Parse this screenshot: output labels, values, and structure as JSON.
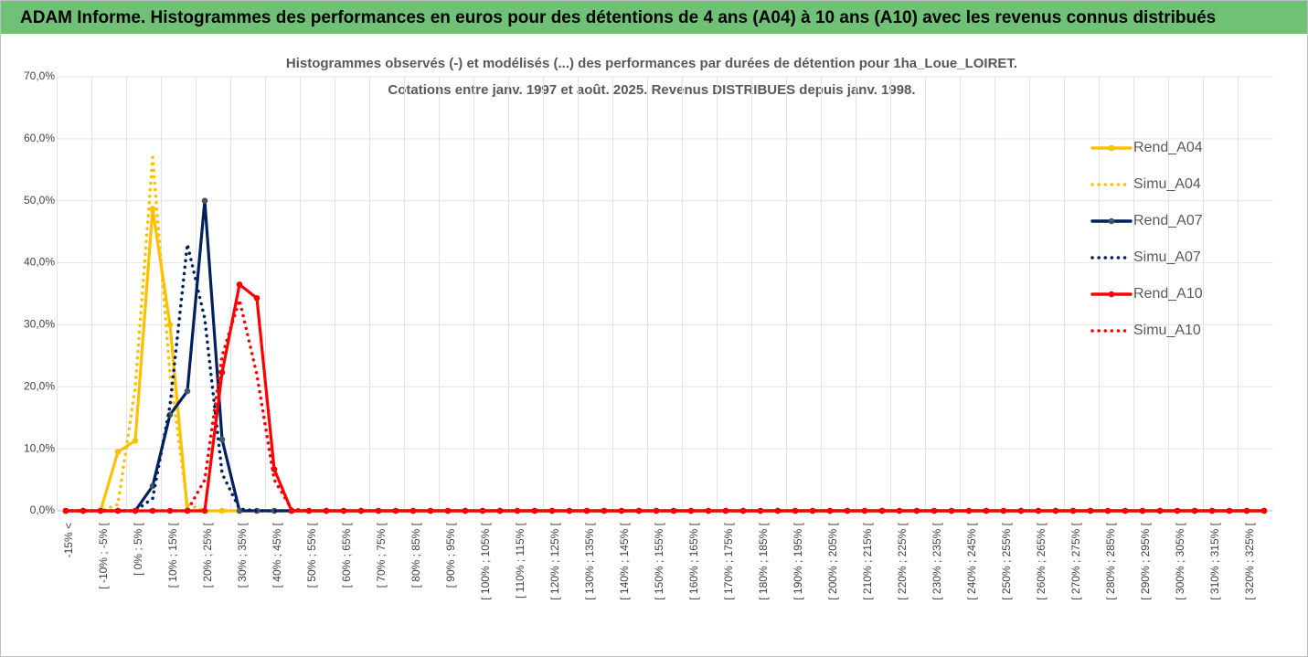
{
  "banner": "ADAM Informe. Histogrammes des performances en euros pour des détentions de 4 ans (A04) à 10 ans (A10) avec les revenus connus distribués",
  "chart_data": {
    "type": "line",
    "title": [
      "Histogrammes observés (-) et modélisés (...) des performances par durées de détention pour 1ha_Loue_LOIRET.",
      "Cotations entre janv. 1997 et août. 2025. Revenus DISTRIBUES depuis janv. 1998."
    ],
    "categories": [
      "-15% <",
      null,
      "[ -10% ; -5% [",
      null,
      "[ 0% ; 5% [",
      null,
      "[ 10% ; 15% [",
      null,
      "[ 20% ; 25% [",
      null,
      "[ 30% ; 35% [",
      null,
      "[ 40% ; 45% [",
      null,
      "[ 50% ; 55% [",
      null,
      "[ 60% ; 65% [",
      null,
      "[ 70% ; 75% [",
      null,
      "[ 80% ; 85% [",
      null,
      "[ 90% ; 95% [",
      null,
      "[ 100% ; 105% [",
      null,
      "[ 110% ; 115% [",
      null,
      "[ 120% ; 125% [",
      null,
      "[ 130% ; 135% [",
      null,
      "[ 140% ; 145% [",
      null,
      "[ 150% ; 155% [",
      null,
      "[ 160% ; 165% [",
      null,
      "[ 170% ; 175% [",
      null,
      "[ 180% ; 185% [",
      null,
      "[ 190% ; 195% [",
      null,
      "[ 200% ; 205% [",
      null,
      "[ 210% ; 215% [",
      null,
      "[ 220% ; 225% [",
      null,
      "[ 230% ; 235% [",
      null,
      "[ 240% ; 245% [",
      null,
      "[ 250% ; 255% [",
      null,
      "[ 260% ; 265% [",
      null,
      "[ 270% ; 275% [",
      null,
      "[ 280% ; 285% [",
      null,
      "[ 290% ; 295% [",
      null,
      "[ 300% ; 305% [",
      null,
      "[ 310% ; 315% [",
      null,
      "[ 320% ; 325% [",
      null
    ],
    "series": [
      {
        "name": "Rend_A04",
        "color": "#FFC000",
        "style": "solid",
        "markers": true,
        "values": [
          0,
          0,
          0,
          9.5,
          11.3,
          48.7,
          30,
          0,
          0,
          0,
          0,
          0,
          0,
          0,
          0,
          0,
          0,
          0,
          0,
          0,
          0,
          0,
          0,
          0,
          0,
          0,
          0,
          0,
          0,
          0,
          0,
          0,
          0,
          0,
          0,
          0,
          0,
          0,
          0,
          0,
          0,
          0,
          0,
          0,
          0,
          0,
          0,
          0,
          0,
          0,
          0,
          0,
          0,
          0,
          0,
          0,
          0,
          0,
          0,
          0,
          0,
          0,
          0,
          0,
          0,
          0,
          0,
          0,
          0,
          0
        ]
      },
      {
        "name": "Simu_A04",
        "color": "#FFC000",
        "style": "dotted",
        "markers": false,
        "values": [
          0,
          0,
          0,
          1,
          20,
          57,
          22,
          1,
          0,
          0,
          0,
          0,
          0,
          0,
          0,
          0,
          0,
          0,
          0,
          0,
          0,
          0,
          0,
          0,
          0,
          0,
          0,
          0,
          0,
          0,
          0,
          0,
          0,
          0,
          0,
          0,
          0,
          0,
          0,
          0,
          0,
          0,
          0,
          0,
          0,
          0,
          0,
          0,
          0,
          0,
          0,
          0,
          0,
          0,
          0,
          0,
          0,
          0,
          0,
          0,
          0,
          0,
          0,
          0,
          0,
          0,
          0,
          0,
          0,
          0
        ]
      },
      {
        "name": "Rend_A07",
        "color": "#002060",
        "style": "solid",
        "markers": true,
        "values": [
          0,
          0,
          0,
          0,
          0,
          4,
          15.5,
          19.3,
          50,
          11.5,
          0,
          0,
          0,
          0,
          0,
          0,
          0,
          0,
          0,
          0,
          0,
          0,
          0,
          0,
          0,
          0,
          0,
          0,
          0,
          0,
          0,
          0,
          0,
          0,
          0,
          0,
          0,
          0,
          0,
          0,
          0,
          0,
          0,
          0,
          0,
          0,
          0,
          0,
          0,
          0,
          0,
          0,
          0,
          0,
          0,
          0,
          0,
          0,
          0,
          0,
          0,
          0,
          0,
          0,
          0,
          0,
          0,
          0,
          0,
          0
        ]
      },
      {
        "name": "Simu_A07",
        "color": "#002060",
        "style": "dotted",
        "markers": false,
        "values": [
          0,
          0,
          0,
          0,
          0,
          2,
          17,
          43,
          31,
          6,
          0.3,
          0,
          0,
          0,
          0,
          0,
          0,
          0,
          0,
          0,
          0,
          0,
          0,
          0,
          0,
          0,
          0,
          0,
          0,
          0,
          0,
          0,
          0,
          0,
          0,
          0,
          0,
          0,
          0,
          0,
          0,
          0,
          0,
          0,
          0,
          0,
          0,
          0,
          0,
          0,
          0,
          0,
          0,
          0,
          0,
          0,
          0,
          0,
          0,
          0,
          0,
          0,
          0,
          0,
          0,
          0,
          0,
          0,
          0,
          0
        ]
      },
      {
        "name": "Rend_A10",
        "color": "#FF0000",
        "style": "solid",
        "markers": true,
        "values": [
          0,
          0,
          0,
          0,
          0,
          0,
          0,
          0,
          0,
          22.3,
          36.5,
          34.3,
          6.7,
          0,
          0,
          0,
          0,
          0,
          0,
          0,
          0,
          0,
          0,
          0,
          0,
          0,
          0,
          0,
          0,
          0,
          0,
          0,
          0,
          0,
          0,
          0,
          0,
          0,
          0,
          0,
          0,
          0,
          0,
          0,
          0,
          0,
          0,
          0,
          0,
          0,
          0,
          0,
          0,
          0,
          0,
          0,
          0,
          0,
          0,
          0,
          0,
          0,
          0,
          0,
          0,
          0,
          0,
          0,
          0,
          0
        ]
      },
      {
        "name": "Simu_A10",
        "color": "#FF0000",
        "style": "dotted",
        "markers": false,
        "values": [
          0,
          0,
          0,
          0,
          0,
          0,
          0,
          0,
          5,
          25,
          34,
          22,
          5,
          0.3,
          0,
          0,
          0,
          0,
          0,
          0,
          0,
          0,
          0,
          0,
          0,
          0,
          0,
          0,
          0,
          0,
          0,
          0,
          0,
          0,
          0,
          0,
          0,
          0,
          0,
          0,
          0,
          0,
          0,
          0,
          0,
          0,
          0,
          0,
          0,
          0,
          0,
          0,
          0,
          0,
          0,
          0,
          0,
          0,
          0,
          0,
          0,
          0,
          0,
          0,
          0,
          0,
          0,
          0,
          0,
          0
        ]
      }
    ],
    "ylim": [
      0,
      70
    ],
    "yticks": [
      {
        "value": 0,
        "label": "0,0%"
      },
      {
        "value": 10,
        "label": "10,0%"
      },
      {
        "value": 20,
        "label": "20,0%"
      },
      {
        "value": 30,
        "label": "30,0%"
      },
      {
        "value": 40,
        "label": "40,0%"
      },
      {
        "value": 50,
        "label": "50,0%"
      },
      {
        "value": 60,
        "label": "60,0%"
      },
      {
        "value": 70,
        "label": "70,0%"
      }
    ],
    "grid": true,
    "legend": "right"
  }
}
